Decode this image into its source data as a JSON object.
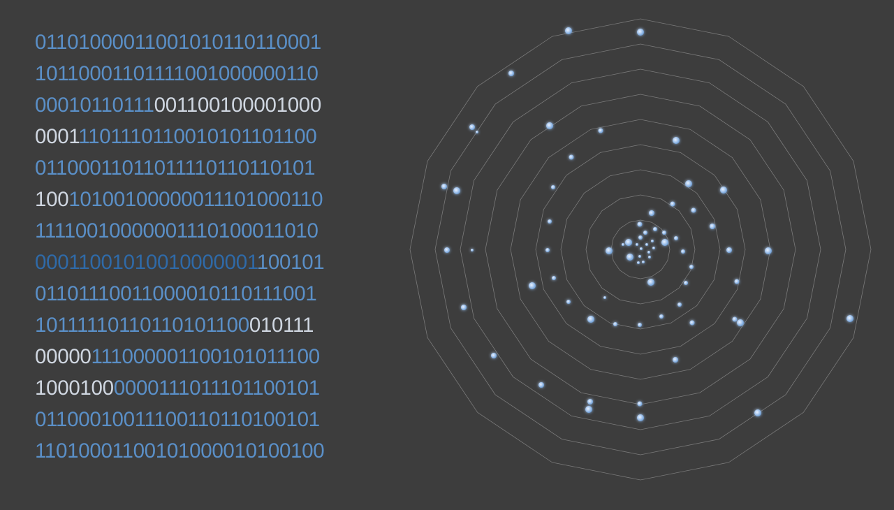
{
  "binary_rows": [
    {
      "text": "0110100001100101011011000​1",
      "segments": [
        {
          "t": "0110100001100101011011000",
          "c": "blue"
        },
        {
          "t": "1",
          "c": "blue"
        }
      ]
    },
    {
      "segments": [
        {
          "t": "1011000110111100100000011​0",
          "c": "blue"
        }
      ]
    },
    {
      "segments": [
        {
          "t": "00010110111",
          "c": "blue"
        },
        {
          "t": "00110010000100​0",
          "c": "white"
        }
      ]
    },
    {
      "segments": [
        {
          "t": "0001",
          "c": "white"
        },
        {
          "t": "110111011001010110110​0",
          "c": "blue"
        }
      ]
    },
    {
      "segments": [
        {
          "t": "01100011011011",
          "c": "blue"
        },
        {
          "t": "11011011010​1",
          "c": "blue"
        }
      ]
    },
    {
      "segments": [
        {
          "t": "100",
          "c": "white"
        },
        {
          "t": "1010010000001110100011​0",
          "c": "blue"
        }
      ]
    },
    {
      "segments": [
        {
          "t": "1111001000000111010001101​0",
          "c": "blue"
        }
      ]
    },
    {
      "segments": [
        {
          "t": "00011001010010000001",
          "c": "dark"
        },
        {
          "t": "10010​1",
          "c": "blue"
        }
      ]
    },
    {
      "segments": [
        {
          "t": "0110111001100001011011100​1",
          "c": "blue"
        }
      ]
    },
    {
      "segments": [
        {
          "t": "10111110110110101100",
          "c": "blue"
        },
        {
          "t": "01011​1",
          "c": "white"
        }
      ]
    },
    {
      "segments": [
        {
          "t": "00000",
          "c": "white"
        },
        {
          "t": "11100000110010101110​0",
          "c": "blue"
        }
      ]
    },
    {
      "segments": [
        {
          "t": "1000100",
          "c": "white"
        },
        {
          "t": "0000111011101100101",
          "c": "blue"
        }
      ]
    },
    {
      "segments": [
        {
          "t": "0110001001110011011010010​1",
          "c": "blue"
        }
      ]
    },
    {
      "segments": [
        {
          "t": "1101000110010100001010010​0",
          "c": "blue"
        }
      ]
    }
  ],
  "colors": {
    "blue": "#5a8fc7",
    "white": "#cfd6e0",
    "dark": "#2f6aa8",
    "background": "#3d3d3d",
    "ring": "#7a7a7a",
    "dot": "#a9c8ee"
  },
  "radar": {
    "rings": 9,
    "sides": 16
  }
}
